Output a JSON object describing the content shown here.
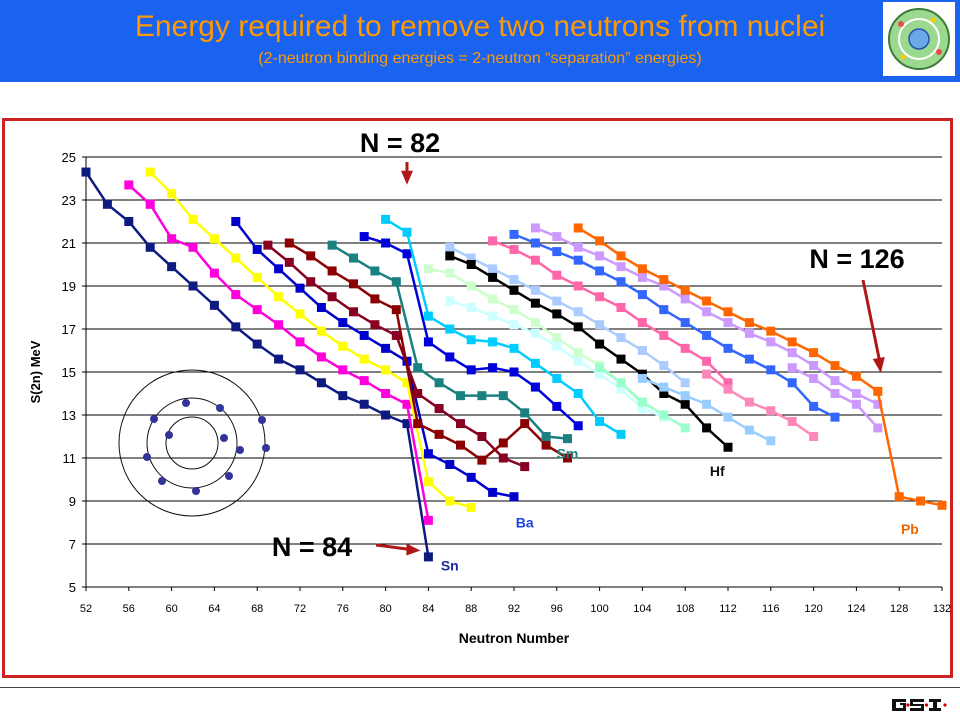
{
  "header": {
    "title": "Energy required to remove two neutrons from nuclei",
    "subtitle": "(2-neutron binding energies = 2-neutron “separation” energies)",
    "logo_icon": "atom-logo-icon",
    "background_color": "#1a63f0",
    "text_color": "#ff9900"
  },
  "footer": {
    "logo": "GSI"
  },
  "chart_data": {
    "type": "line",
    "xlabel": "Neutron Number",
    "ylabel": "S(2n) MeV",
    "xlim": [
      52,
      132
    ],
    "ylim": [
      5,
      25
    ],
    "xticks": [
      52,
      56,
      60,
      64,
      68,
      72,
      76,
      80,
      84,
      88,
      92,
      96,
      100,
      104,
      108,
      112,
      116,
      120,
      124,
      128,
      132
    ],
    "yticks": [
      5,
      7,
      9,
      11,
      13,
      15,
      17,
      19,
      21,
      23,
      25
    ],
    "grid": "horizontal",
    "annotations": [
      {
        "text": "N = 82",
        "arrow_x": 82,
        "arrow_y": 23.8
      },
      {
        "text": "N = 84",
        "arrow_x": 84,
        "arrow_y": 6.7
      },
      {
        "text": "N = 126",
        "arrow_x": 126,
        "arrow_y": 15.0
      }
    ],
    "series_labels": [
      {
        "text": "Sn",
        "x": 86,
        "y": 6.0,
        "color": "#1f2a99"
      },
      {
        "text": "Ba",
        "x": 93,
        "y": 8.0,
        "color": "#1f44dd"
      },
      {
        "text": "Sm",
        "x": 97,
        "y": 11.2,
        "color": "#1a8080"
      },
      {
        "text": "Hf",
        "x": 111,
        "y": 10.4,
        "color": "#111111"
      },
      {
        "text": "Pb",
        "x": 129,
        "y": 7.7,
        "color": "#ee6600"
      }
    ],
    "series": [
      {
        "color": "#0d1a80",
        "x": [
          52,
          54,
          56,
          58,
          60,
          62,
          64,
          66,
          68,
          70,
          72,
          74,
          76,
          78,
          80,
          82,
          84
        ],
        "y": [
          24.3,
          22.8,
          22.0,
          20.8,
          19.9,
          19.0,
          18.1,
          17.1,
          16.3,
          15.6,
          15.1,
          14.5,
          13.9,
          13.5,
          13.0,
          12.6,
          6.4
        ]
      },
      {
        "color": "#ff00dd",
        "x": [
          56,
          58,
          60,
          62,
          64,
          66,
          68,
          70,
          72,
          74,
          76,
          78,
          80,
          82,
          84
        ],
        "y": [
          23.7,
          22.8,
          21.2,
          20.8,
          19.6,
          18.6,
          17.9,
          17.2,
          16.4,
          15.7,
          15.1,
          14.6,
          14.0,
          13.5,
          8.1
        ]
      },
      {
        "color": "#ffff00",
        "x": [
          58,
          60,
          62,
          64,
          66,
          68,
          70,
          72,
          74,
          76,
          78,
          80,
          82,
          84,
          86,
          88
        ],
        "y": [
          24.3,
          23.3,
          22.1,
          21.2,
          20.3,
          19.4,
          18.5,
          17.7,
          16.9,
          16.2,
          15.6,
          15.1,
          14.5,
          9.9,
          9.0,
          8.7
        ]
      },
      {
        "color": "#0000cc",
        "x": [
          66,
          68,
          70,
          72,
          74,
          76,
          78,
          80,
          82,
          84,
          86,
          88,
          90,
          92
        ],
        "y": [
          22.0,
          20.7,
          19.8,
          18.9,
          18.0,
          17.3,
          16.7,
          16.1,
          15.5,
          11.2,
          10.7,
          10.1,
          9.4,
          9.2
        ]
      },
      {
        "color": "#880022",
        "x": [
          69,
          71,
          73,
          75,
          77,
          79,
          81,
          83,
          85,
          87,
          89,
          91,
          93
        ],
        "y": [
          20.9,
          20.1,
          19.2,
          18.5,
          17.8,
          17.2,
          16.7,
          14.0,
          13.3,
          12.6,
          12.0,
          11.0,
          10.6
        ]
      },
      {
        "color": "#8b0000",
        "x": [
          71,
          73,
          75,
          77,
          79,
          81,
          83,
          85,
          87,
          89,
          91,
          93,
          95,
          97
        ],
        "y": [
          21.0,
          20.4,
          19.7,
          19.1,
          18.4,
          17.9,
          12.6,
          12.1,
          11.6,
          10.9,
          11.7,
          12.6,
          11.6,
          11.0
        ]
      },
      {
        "color": "#0000dd",
        "x": [
          78,
          80,
          82,
          84,
          86,
          88,
          90,
          92,
          94,
          96,
          98
        ],
        "y": [
          21.3,
          21.0,
          20.5,
          16.4,
          15.7,
          15.1,
          15.2,
          15.0,
          14.3,
          13.4,
          12.5
        ]
      },
      {
        "color": "#1a8080",
        "x": [
          75,
          77,
          79,
          81,
          83,
          85,
          87,
          89,
          91,
          93,
          95,
          97
        ],
        "y": [
          20.9,
          20.3,
          19.7,
          19.2,
          15.2,
          14.5,
          13.9,
          13.9,
          13.9,
          13.1,
          12.0,
          11.9
        ]
      },
      {
        "color": "#00ccff",
        "x": [
          80,
          82,
          84,
          86,
          88,
          90,
          92,
          94,
          96,
          98,
          100,
          102
        ],
        "y": [
          22.1,
          21.5,
          17.6,
          17.0,
          16.5,
          16.4,
          16.1,
          15.4,
          14.7,
          14.0,
          12.7,
          12.1
        ]
      },
      {
        "color": "#ccffcc",
        "x": [
          84,
          86,
          88,
          90,
          92,
          94,
          96,
          98,
          100,
          102,
          104
        ],
        "y": [
          19.8,
          19.6,
          19.0,
          18.4,
          17.9,
          17.3,
          16.6,
          15.9,
          15.3,
          14.5,
          13.5
        ]
      },
      {
        "color": "#ccffff",
        "x": [
          86,
          88,
          90,
          92,
          94,
          96,
          98,
          100,
          102,
          104,
          106
        ],
        "y": [
          18.3,
          18.0,
          17.6,
          17.2,
          16.8,
          16.2,
          15.5,
          14.9,
          14.2,
          13.3,
          12.9
        ]
      },
      {
        "color": "#aaccff",
        "x": [
          86,
          88,
          90,
          92,
          94,
          96,
          98,
          100,
          102,
          104,
          106,
          108
        ],
        "y": [
          20.8,
          20.3,
          19.8,
          19.3,
          18.8,
          18.3,
          17.8,
          17.2,
          16.6,
          16.0,
          15.3,
          14.5
        ]
      },
      {
        "color": "#ff66aa",
        "x": [
          90,
          92,
          94,
          96,
          98,
          100,
          102,
          104,
          106,
          108,
          110,
          112
        ],
        "y": [
          21.1,
          20.7,
          20.2,
          19.5,
          19.0,
          18.5,
          18.0,
          17.3,
          16.7,
          16.1,
          15.5,
          14.5
        ]
      },
      {
        "color": "#000000",
        "x": [
          86,
          88,
          90,
          92,
          94,
          96,
          98,
          100,
          102,
          104,
          106,
          108,
          110,
          112
        ],
        "y": [
          20.4,
          20.0,
          19.4,
          18.8,
          18.2,
          17.7,
          17.1,
          16.3,
          15.6,
          14.9,
          14.0,
          13.5,
          12.4,
          11.5
        ]
      },
      {
        "color": "#3366ff",
        "x": [
          92,
          94,
          96,
          98,
          100,
          102,
          104,
          106,
          108,
          110,
          112,
          114,
          116,
          118,
          120,
          122
        ],
        "y": [
          21.4,
          21.0,
          20.6,
          20.2,
          19.7,
          19.2,
          18.6,
          17.9,
          17.3,
          16.7,
          16.1,
          15.6,
          15.1,
          14.5,
          13.4,
          12.9
        ]
      },
      {
        "color": "#cc99ff",
        "x": [
          94,
          96,
          98,
          100,
          102,
          104,
          106,
          108,
          110,
          112,
          114,
          116,
          118,
          120,
          122,
          124,
          126
        ],
        "y": [
          21.7,
          21.3,
          20.8,
          20.4,
          19.9,
          19.4,
          19.0,
          18.4,
          17.8,
          17.3,
          16.8,
          16.4,
          15.9,
          15.3,
          14.6,
          14.0,
          13.5
        ]
      },
      {
        "color": "#ff88bb",
        "x": [
          110,
          112,
          114,
          116,
          118,
          120
        ],
        "y": [
          14.9,
          14.2,
          13.6,
          13.2,
          12.7,
          12.0
        ]
      },
      {
        "color": "#99ffcc",
        "x": [
          100,
          102,
          104,
          106,
          108
        ],
        "y": [
          15.2,
          14.5,
          13.6,
          13.0,
          12.4
        ]
      },
      {
        "color": "#99ccff",
        "x": [
          104,
          106,
          108,
          110,
          112,
          114,
          116
        ],
        "y": [
          14.7,
          14.3,
          13.9,
          13.5,
          12.9,
          12.3,
          11.8
        ]
      },
      {
        "color": "#cc99ff",
        "x": [
          118,
          120,
          122,
          124,
          126
        ],
        "y": [
          15.2,
          14.7,
          14.0,
          13.5,
          12.4
        ]
      },
      {
        "color": "#ff6600",
        "x": [
          98,
          100,
          102,
          104,
          106,
          108,
          110,
          112,
          114,
          116,
          118,
          120,
          122,
          124,
          126,
          128,
          130,
          132
        ],
        "y": [
          21.7,
          21.1,
          20.4,
          19.8,
          19.3,
          18.8,
          18.3,
          17.8,
          17.3,
          16.9,
          16.4,
          15.9,
          15.3,
          14.8,
          14.1,
          9.2,
          9.0,
          8.8
        ]
      }
    ]
  }
}
